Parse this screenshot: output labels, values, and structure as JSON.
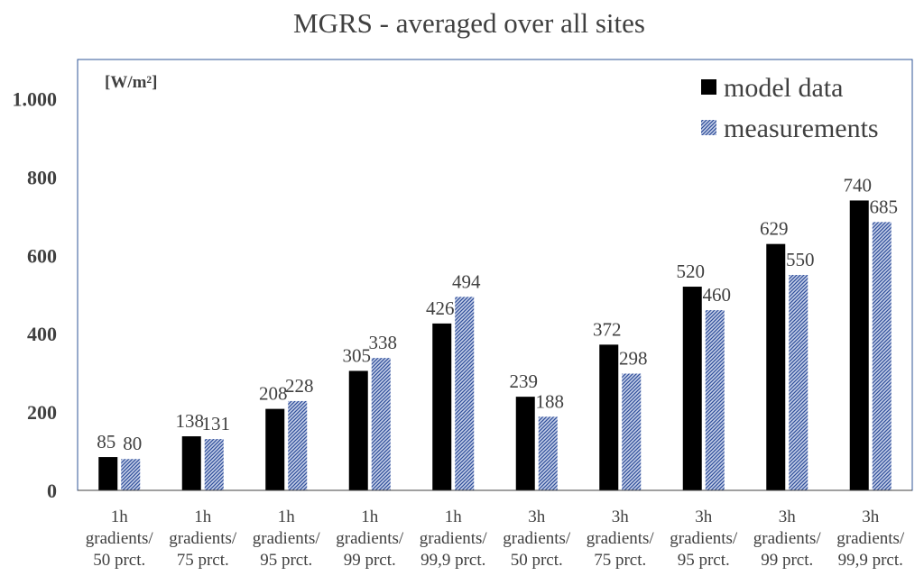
{
  "chart_data": {
    "type": "bar",
    "title": "MGRS - averaged over all sites",
    "unit_label": "[W/m²]",
    "xlabel": "",
    "ylabel": "",
    "ylim": [
      0,
      1100
    ],
    "yticks": [
      0,
      200,
      400,
      600,
      800,
      1000
    ],
    "ytick_labels": [
      "0",
      "200",
      "400",
      "600",
      "800",
      "1.000"
    ],
    "legend_position": "top-right",
    "grid": false,
    "categories": [
      [
        "1h",
        "gradients/",
        "50 prct."
      ],
      [
        "1h",
        "gradients/",
        "75 prct."
      ],
      [
        "1h",
        "gradients/",
        "95 prct."
      ],
      [
        "1h",
        "gradients/",
        "99 prct."
      ],
      [
        "1h",
        "gradients/",
        "99,9 prct."
      ],
      [
        "3h",
        "gradients/",
        "50 prct."
      ],
      [
        "3h",
        "gradients/",
        "75 prct."
      ],
      [
        "3h",
        "gradients/",
        "95 prct."
      ],
      [
        "3h",
        "gradients/",
        "99 prct."
      ],
      [
        "3h",
        "gradients/",
        "99,9 prct."
      ]
    ],
    "series": [
      {
        "name": "model data",
        "color": "#000000",
        "pattern": "solid",
        "values": [
          85,
          138,
          208,
          305,
          426,
          239,
          372,
          520,
          629,
          740
        ]
      },
      {
        "name": "measurements",
        "color": "#2f4f9a",
        "pattern": "hatched",
        "values": [
          80,
          131,
          228,
          338,
          494,
          188,
          298,
          460,
          550,
          685
        ]
      }
    ]
  }
}
